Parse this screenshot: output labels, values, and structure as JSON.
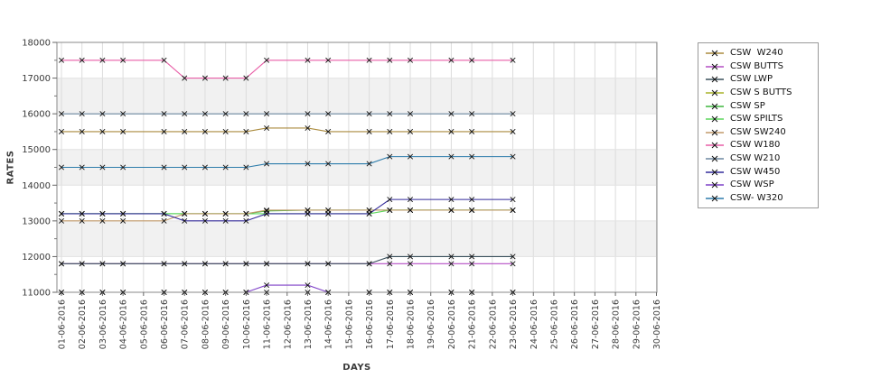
{
  "chart_data": {
    "type": "line",
    "title": "",
    "xlabel": "DAYS",
    "ylabel": "RATES",
    "ylim": [
      11000,
      18000
    ],
    "ytick_step": 1000,
    "ytick_minor_step": 500,
    "legend_position": "right-outside",
    "grid": true,
    "band_fill": "#f1f1f1",
    "grid_color": "#dcdcdc",
    "marker": "x",
    "marker_color": "#111111",
    "x_dates": [
      "01-06-2016",
      "02-06-2016",
      "03-06-2016",
      "04-06-2016",
      "05-06-2016",
      "06-06-2016",
      "07-06-2016",
      "08-06-2016",
      "09-06-2016",
      "10-06-2016",
      "11-06-2016",
      "12-06-2016",
      "13-06-2016",
      "14-06-2016",
      "15-06-2016",
      "16-06-2016",
      "17-06-2016",
      "18-06-2016",
      "19-06-2016",
      "20-06-2016",
      "21-06-2016",
      "22-06-2016",
      "23-06-2016",
      "24-06-2016",
      "25-06-2016",
      "26-06-2016",
      "27-06-2016",
      "28-06-2016",
      "29-06-2016",
      "30-06-2016"
    ],
    "data_days": [
      1,
      2,
      3,
      4,
      6,
      7,
      8,
      9,
      10,
      11,
      13,
      14,
      16,
      17,
      18,
      20,
      21,
      23
    ],
    "series": [
      {
        "name": "CSW  W240",
        "color": "#ab8b3e",
        "values": [
          15500,
          15500,
          15500,
          15500,
          15500,
          15500,
          15500,
          15500,
          15500,
          15600,
          15600,
          15500,
          15500,
          15500,
          15500,
          15500,
          15500,
          15500
        ]
      },
      {
        "name": "CSW BUTTS",
        "color": "#b44fc4",
        "values": [
          11800,
          11800,
          11800,
          11800,
          11800,
          11800,
          11800,
          11800,
          11800,
          11800,
          11800,
          11800,
          11800,
          11800,
          11800,
          11800,
          11800,
          11800
        ]
      },
      {
        "name": "CSW LWP",
        "color": "#3a505c",
        "values": [
          11800,
          11800,
          11800,
          11800,
          11800,
          11800,
          11800,
          11800,
          11800,
          11800,
          11800,
          11800,
          11800,
          12000,
          12000,
          12000,
          12000,
          12000
        ]
      },
      {
        "name": "CSW S BUTTS",
        "color": "#a9b32a",
        "values": [
          11000,
          11000,
          11000,
          11000,
          11000,
          11000,
          11000,
          11000,
          11000,
          11000,
          11000,
          11000,
          11000,
          11000,
          11000,
          11000,
          11000,
          11000
        ]
      },
      {
        "name": "CSW SP",
        "color": "#3db53d",
        "values": [
          13200,
          13200,
          13200,
          13200,
          13200,
          13200,
          13200,
          13200,
          13200,
          13280,
          13300,
          13300,
          13300,
          13300,
          13300,
          13300,
          13300,
          13300
        ]
      },
      {
        "name": "CSW SPILTS",
        "color": "#5cd65c",
        "values": [
          13200,
          13200,
          13200,
          13200,
          13200,
          13200,
          13200,
          13200,
          13200,
          13200,
          13200,
          13200,
          13200,
          13300,
          13300,
          13300,
          13300,
          13300
        ]
      },
      {
        "name": "CSW SW240",
        "color": "#c29a6a",
        "values": [
          13000,
          13000,
          13000,
          13000,
          13000,
          13200,
          13200,
          13200,
          13200,
          13300,
          13300,
          13300,
          13300,
          13300,
          13300,
          13300,
          13300,
          13300
        ]
      },
      {
        "name": "CSW W180",
        "color": "#e85fa7",
        "values": [
          17500,
          17500,
          17500,
          17500,
          17500,
          17000,
          17000,
          17000,
          17000,
          17500,
          17500,
          17500,
          17500,
          17500,
          17500,
          17500,
          17500,
          17500
        ]
      },
      {
        "name": "CSW W210",
        "color": "#6d87a0",
        "values": [
          16000,
          16000,
          16000,
          16000,
          16000,
          16000,
          16000,
          16000,
          16000,
          16000,
          16000,
          16000,
          16000,
          16000,
          16000,
          16000,
          16000,
          16000
        ]
      },
      {
        "name": "CSW W450",
        "color": "#342b9b",
        "values": [
          13200,
          13200,
          13200,
          13200,
          13200,
          13000,
          13000,
          13000,
          13000,
          13200,
          13200,
          13200,
          13200,
          13600,
          13600,
          13600,
          13600,
          13600
        ]
      },
      {
        "name": "CSW WSP",
        "color": "#7f42c8",
        "values": [
          11000,
          11000,
          11000,
          11000,
          11000,
          11000,
          11000,
          11000,
          11000,
          11200,
          11200,
          11000,
          11000,
          11000,
          11000,
          11000,
          11000,
          11000
        ]
      },
      {
        "name": "CSW- W320",
        "color": "#2d7cab",
        "values": [
          14500,
          14500,
          14500,
          14500,
          14500,
          14500,
          14500,
          14500,
          14500,
          14600,
          14600,
          14600,
          14600,
          14800,
          14800,
          14800,
          14800,
          14800
        ]
      }
    ]
  }
}
